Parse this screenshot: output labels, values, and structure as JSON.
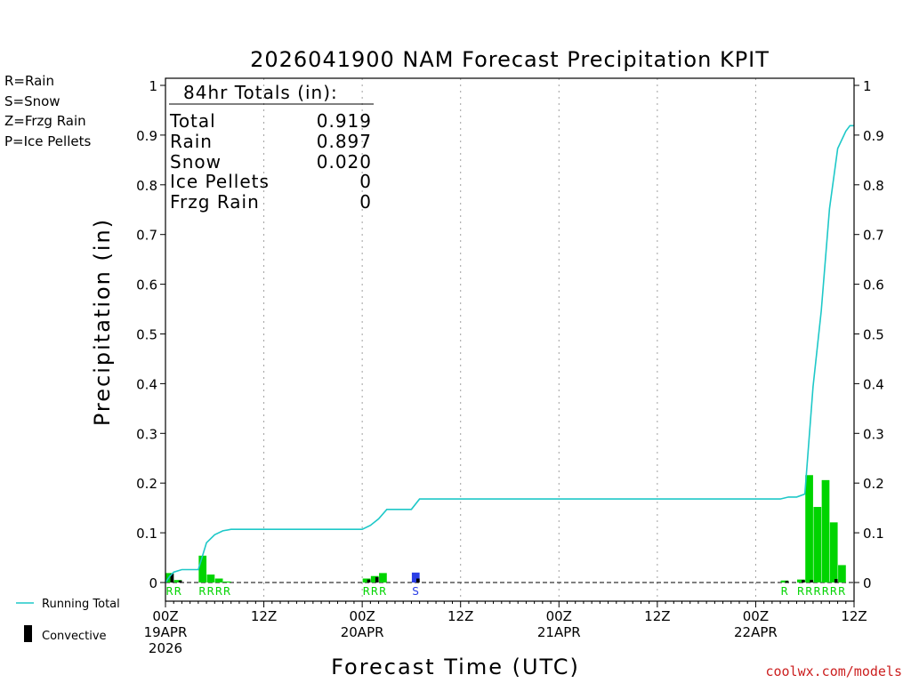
{
  "chart_data": {
    "type": "bar",
    "title": "2026041900 NAM Forecast Precipitation KPIT",
    "ylabel": "Precipitation (in)",
    "xlabel": "Forecast Time (UTC)",
    "ylim": [
      0,
      1
    ],
    "xlim_hours": [
      0,
      84
    ],
    "yticks": [
      {
        "v": 0,
        "label": "0"
      },
      {
        "v": 0.1,
        "label": "0.1"
      },
      {
        "v": 0.2,
        "label": "0.2"
      },
      {
        "v": 0.3,
        "label": "0.3"
      },
      {
        "v": 0.4,
        "label": "0.4"
      },
      {
        "v": 0.5,
        "label": "0.5"
      },
      {
        "v": 0.6,
        "label": "0.6"
      },
      {
        "v": 0.7,
        "label": "0.7"
      },
      {
        "v": 0.8,
        "label": "0.8"
      },
      {
        "v": 0.9,
        "label": "0.9"
      },
      {
        "v": 1,
        "label": "1"
      }
    ],
    "xticks": [
      {
        "h": 0,
        "lines": [
          "00Z",
          "19APR",
          "2026"
        ]
      },
      {
        "h": 12,
        "lines": [
          "12Z"
        ]
      },
      {
        "h": 24,
        "lines": [
          "00Z",
          "20APR"
        ]
      },
      {
        "h": 36,
        "lines": [
          "12Z"
        ]
      },
      {
        "h": 48,
        "lines": [
          "00Z",
          "21APR"
        ]
      },
      {
        "h": 60,
        "lines": [
          "12Z"
        ]
      },
      {
        "h": 72,
        "lines": [
          "00Z",
          "22APR"
        ]
      },
      {
        "h": 84,
        "lines": [
          "12Z"
        ]
      }
    ],
    "bars": [
      {
        "h": 1,
        "total": 0.019,
        "convective": 0.018,
        "type": "rain"
      },
      {
        "h": 2,
        "total": 0.005,
        "convective": 0.004,
        "type": "rain"
      },
      {
        "h": 5,
        "total": 0.054,
        "convective": 0.0,
        "type": "rain"
      },
      {
        "h": 6,
        "total": 0.016,
        "convective": 0.0,
        "type": "rain"
      },
      {
        "h": 7,
        "total": 0.008,
        "convective": 0.0,
        "type": "rain"
      },
      {
        "h": 8,
        "total": 0.002,
        "convective": 0.0,
        "type": "rain"
      },
      {
        "h": 25,
        "total": 0.008,
        "convective": 0.006,
        "type": "rain"
      },
      {
        "h": 26,
        "total": 0.013,
        "convective": 0.011,
        "type": "rain"
      },
      {
        "h": 27,
        "total": 0.019,
        "convective": 0.0,
        "type": "rain"
      },
      {
        "h": 31,
        "total": 0.02,
        "convective": 0.008,
        "type": "snow"
      },
      {
        "h": 76,
        "total": 0.004,
        "convective": 0.003,
        "type": "rain"
      },
      {
        "h": 78,
        "total": 0.006,
        "convective": 0.005,
        "type": "rain"
      },
      {
        "h": 79,
        "total": 0.216,
        "convective": 0.005,
        "type": "rain"
      },
      {
        "h": 80,
        "total": 0.152,
        "convective": 0.0,
        "type": "rain"
      },
      {
        "h": 81,
        "total": 0.206,
        "convective": 0.0,
        "type": "rain"
      },
      {
        "h": 82,
        "total": 0.121,
        "convective": 0.007,
        "type": "rain"
      },
      {
        "h": 83,
        "total": 0.035,
        "convective": 0.0,
        "type": "rain"
      }
    ],
    "running_total": [
      [
        0,
        0
      ],
      [
        0.5,
        0.012
      ],
      [
        1,
        0.021
      ],
      [
        2,
        0.026
      ],
      [
        3,
        0.026
      ],
      [
        4,
        0.026
      ],
      [
        5,
        0.08
      ],
      [
        6,
        0.096
      ],
      [
        7,
        0.104
      ],
      [
        8,
        0.107
      ],
      [
        9,
        0.107
      ],
      [
        24,
        0.107
      ],
      [
        25,
        0.115
      ],
      [
        26,
        0.128
      ],
      [
        27,
        0.147
      ],
      [
        28,
        0.147
      ],
      [
        30,
        0.147
      ],
      [
        31,
        0.168
      ],
      [
        32,
        0.168
      ],
      [
        75,
        0.168
      ],
      [
        76,
        0.172
      ],
      [
        77,
        0.172
      ],
      [
        78,
        0.178
      ],
      [
        79,
        0.394
      ],
      [
        80,
        0.546
      ],
      [
        81,
        0.752
      ],
      [
        82,
        0.873
      ],
      [
        83,
        0.908
      ],
      [
        83.5,
        0.919
      ],
      [
        84,
        0.919
      ]
    ],
    "type_letters": [
      {
        "h": 1,
        "letter": "R",
        "type": "rain"
      },
      {
        "h": 2,
        "letter": "R",
        "type": "rain"
      },
      {
        "h": 5,
        "letter": "R",
        "type": "rain"
      },
      {
        "h": 6,
        "letter": "R",
        "type": "rain"
      },
      {
        "h": 7,
        "letter": "R",
        "type": "rain"
      },
      {
        "h": 8,
        "letter": "R",
        "type": "rain"
      },
      {
        "h": 25,
        "letter": "R",
        "type": "rain"
      },
      {
        "h": 26,
        "letter": "R",
        "type": "rain"
      },
      {
        "h": 27,
        "letter": "R",
        "type": "rain"
      },
      {
        "h": 31,
        "letter": "S",
        "type": "snow"
      },
      {
        "h": 76,
        "letter": "R",
        "type": "rain"
      },
      {
        "h": 78,
        "letter": "R",
        "type": "rain"
      },
      {
        "h": 79,
        "letter": "R",
        "type": "rain"
      },
      {
        "h": 80,
        "letter": "R",
        "type": "rain"
      },
      {
        "h": 81,
        "letter": "R",
        "type": "rain"
      },
      {
        "h": 82,
        "letter": "R",
        "type": "rain"
      },
      {
        "h": 83,
        "letter": "R",
        "type": "rain"
      }
    ],
    "colors": {
      "rain": "#00d400",
      "snow": "#2b3fe6",
      "frzg": "#f08c3a",
      "ice": "#e0148c",
      "running_total": "#1ec8c8",
      "convective": "#000000",
      "grid": "#a0a0a0"
    }
  },
  "ptype_legend": [
    {
      "label": "R=Rain",
      "color": "#00d400"
    },
    {
      "label": "S=Snow",
      "color": "#2b3fe6"
    },
    {
      "label": "Z=Frzg Rain",
      "color": "#f08c3a"
    },
    {
      "label": "P=Ice Pellets",
      "color": "#e0148c"
    }
  ],
  "totals": {
    "header": "84hr Totals (in):",
    "rows": [
      {
        "label": "Total",
        "value": "0.919"
      },
      {
        "label": "Rain",
        "value": "0.897"
      },
      {
        "label": "Snow",
        "value": "0.020"
      },
      {
        "label": "Ice Pellets",
        "value": "0"
      },
      {
        "label": "Frzg Rain",
        "value": "0"
      }
    ]
  },
  "series_legend": {
    "running_total": "Running Total",
    "convective": "Convective"
  },
  "credit": "coolwx.com/models"
}
